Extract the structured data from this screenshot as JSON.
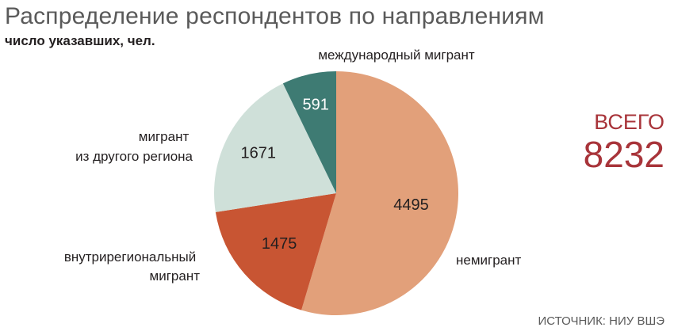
{
  "title": "Распределение респондентов по направлениям",
  "subtitle": "число указавших, чел.",
  "total": {
    "label": "ВСЕГО",
    "value": "8232"
  },
  "source": "ИСТОЧНИК: НИУ ВШЭ",
  "chart_data": {
    "type": "pie",
    "title": "Распределение респондентов по направлениям",
    "subtitle": "число указавших, чел.",
    "start": "12 o'clock",
    "direction": "clockwise",
    "slices": [
      {
        "label": "немигрант",
        "value": 4495,
        "display": "4495",
        "color": "#e2a07a",
        "text_color": "#231f20"
      },
      {
        "label": "внутрирегиональный мигрант",
        "label_lines": [
          "внутрирегиональный",
          "мигрант"
        ],
        "value": 1475,
        "display": "1475",
        "color": "#c85533",
        "text_color": "#231f20"
      },
      {
        "label": "мигрант из другого региона",
        "label_lines": [
          "мигрант",
          "из другого региона"
        ],
        "value": 1671,
        "display": "1671",
        "color": "#cfe0d9",
        "text_color": "#231f20"
      },
      {
        "label": "международный мигрант",
        "value": 591,
        "display": "591",
        "color": "#3e7b73",
        "text_color": "#ffffff"
      }
    ]
  }
}
